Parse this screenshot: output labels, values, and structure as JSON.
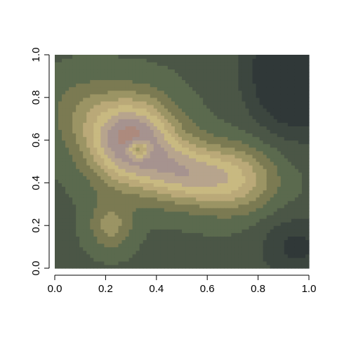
{
  "chart_data": {
    "type": "heatmap",
    "title": "",
    "xlabel": "",
    "ylabel": "",
    "xlim": [
      0,
      1
    ],
    "ylim": [
      0,
      1
    ],
    "grid": false,
    "x_ticks": [
      "0.0",
      "0.2",
      "0.4",
      "0.6",
      "0.8",
      "1.0"
    ],
    "y_ticks": [
      "0.0",
      "0.2",
      "0.4",
      "0.6",
      "0.8",
      "1.0"
    ],
    "value_range": [
      0,
      1
    ],
    "palette": [
      "#303838",
      "#3c463f",
      "#4b5646",
      "#5b6a4e",
      "#7b7a52",
      "#9b9464",
      "#baa978",
      "#c8b981",
      "#b7a48d",
      "#a6938f",
      "#ad8a7d",
      "#c98151",
      "#cc6b38",
      "#d0582c"
    ],
    "density_model": {
      "base": 0.2,
      "components": [
        {
          "x": 0.3,
          "y": 0.6,
          "sx": 0.12,
          "sy": 0.14,
          "w": 0.55
        },
        {
          "x": 0.5,
          "y": 0.45,
          "sx": 0.11,
          "sy": 0.1,
          "w": 0.3
        },
        {
          "x": 0.7,
          "y": 0.42,
          "sx": 0.12,
          "sy": 0.11,
          "w": 0.3
        },
        {
          "x": 0.22,
          "y": 0.2,
          "sx": 0.06,
          "sy": 0.08,
          "w": 0.18
        },
        {
          "x": 0.1,
          "y": 0.75,
          "sx": 0.1,
          "sy": 0.12,
          "w": 0.1
        },
        {
          "x": 0.33,
          "y": 0.56,
          "sx": 0.03,
          "sy": 0.03,
          "w": -0.35
        },
        {
          "x": 0.95,
          "y": 0.92,
          "sx": 0.12,
          "sy": 0.18,
          "w": -0.35
        },
        {
          "x": 0.95,
          "y": 0.1,
          "sx": 0.1,
          "sy": 0.1,
          "w": -0.15
        }
      ]
    }
  }
}
